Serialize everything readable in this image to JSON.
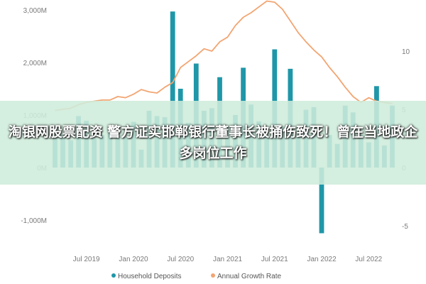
{
  "chart_data": {
    "type": "bar+line",
    "y_left": {
      "min": -1200,
      "max": 3000,
      "ticks": [
        "3,000M",
        "2,000M",
        "1,000M",
        "0M",
        "-1,000M"
      ],
      "tick_values": [
        3000,
        2000,
        1000,
        0,
        -1000
      ]
    },
    "y_right": {
      "min": -6.5,
      "max": 14.6,
      "ticks": [
        "10",
        "5",
        "0",
        "-5"
      ],
      "tick_values": [
        10,
        5,
        0,
        -5
      ]
    },
    "x_ticks": [
      {
        "label": "Jul 2019",
        "index": 4
      },
      {
        "label": "Jan 2020",
        "index": 10
      },
      {
        "label": "Jul 2020",
        "index": 16
      },
      {
        "label": "Jan 2021",
        "index": 22
      },
      {
        "label": "Jul 2021",
        "index": 28
      },
      {
        "label": "Jan 2022",
        "index": 34
      },
      {
        "label": "Jul 2022",
        "index": 40
      }
    ],
    "series": [
      {
        "name": "Household Deposits",
        "kind": "bar",
        "color": "#1f97a8",
        "values": [
          780,
          620,
          520,
          980,
          890,
          550,
          620,
          760,
          690,
          580,
          870,
          340,
          1080,
          980,
          960,
          2970,
          1500,
          850,
          1980,
          1080,
          1130,
          1720,
          780,
          1000,
          1900,
          1200,
          880,
          600,
          2250,
          780,
          1880,
          580,
          1100,
          1150,
          -1250,
          620,
          450,
          1180,
          1050,
          620,
          480,
          1550,
          420,
          1180
        ]
      },
      {
        "name": "Annual Growth Rate",
        "kind": "line",
        "axis": "right",
        "color": "#f2a572",
        "values": [
          4.9,
          5.0,
          5.1,
          5.4,
          5.6,
          5.7,
          5.8,
          5.8,
          6.1,
          6.0,
          6.3,
          6.7,
          6.5,
          6.4,
          6.9,
          7.3,
          8.6,
          9.1,
          9.6,
          10.2,
          10.0,
          10.8,
          11.2,
          12.2,
          12.9,
          13.3,
          13.8,
          14.3,
          14.2,
          13.6,
          12.6,
          11.6,
          10.8,
          10.1,
          9.5,
          8.6,
          7.8,
          6.9,
          6.1,
          5.6,
          6.0,
          5.7,
          5.6,
          5.5
        ]
      }
    ]
  },
  "legend": {
    "items": [
      {
        "label": "Household Deposits",
        "color": "#1f97a8"
      },
      {
        "label": "Annual Growth Rate",
        "color": "#f2a572"
      }
    ]
  },
  "banner": {
    "text": "淘银网股票配资 警方证实邯郸银行董事长被捅伤致死！曾在当地政企多岗位工作"
  }
}
